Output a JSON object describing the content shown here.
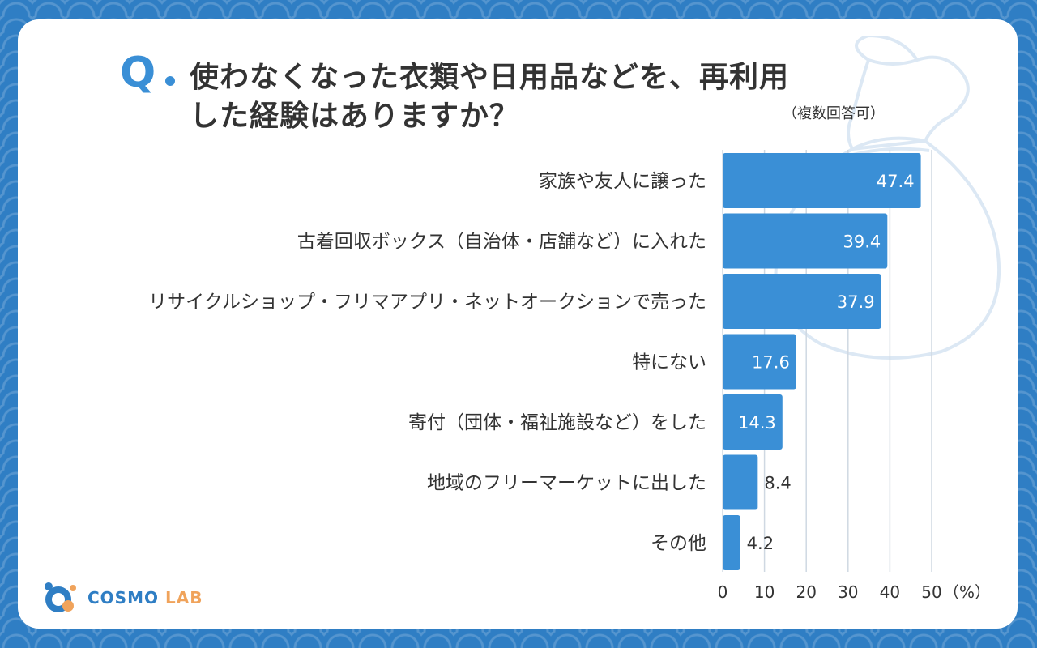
{
  "question": {
    "mark": "Q",
    "line1": "使わなくなった衣類や日用品などを、再利用",
    "line2": "した経験はありますか？",
    "note": "（複数回答可）"
  },
  "chart_data": {
    "type": "bar",
    "orientation": "horizontal",
    "categories": [
      "家族や友人に譲った",
      "古着回収ボックス（自治体・店舗など）に入れた",
      "リサイクルショップ・フリマアプリ・ネットオークションで売った",
      "特にない",
      "寄付（団体・福祉施設など）をした",
      "地域のフリーマーケットに出した",
      "その他"
    ],
    "values": [
      47.4,
      39.4,
      37.9,
      17.6,
      14.3,
      8.4,
      4.2
    ],
    "value_labels": [
      "47.4",
      "39.4",
      "37.9",
      "17.6",
      "14.3",
      "8.4",
      "4.2"
    ],
    "x_ticks": [
      "0",
      "10",
      "20",
      "30",
      "40",
      "50"
    ],
    "x_unit": "（%）",
    "xlim": [
      0,
      50
    ],
    "grid": true,
    "bar_color": "#3a8fd6"
  },
  "logo": {
    "name": "COSMO",
    "suffix": "LAB"
  },
  "colors": {
    "frame": "#2f7ec4",
    "accent": "#3a8fd6",
    "logo_accent": "#f0a35b"
  }
}
